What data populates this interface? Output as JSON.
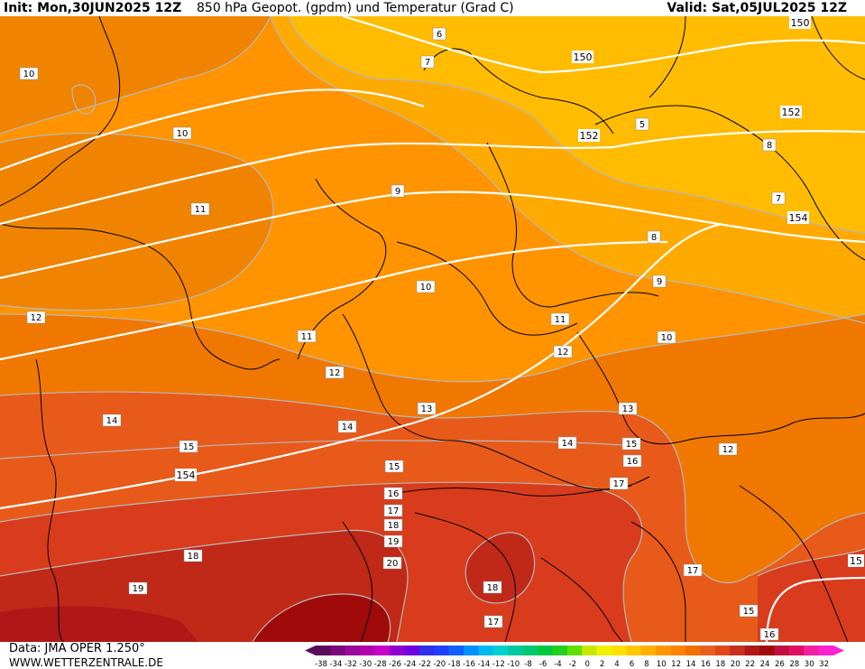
{
  "header": {
    "init": "Init: Mon,30JUN2025 12Z",
    "title": "850 hPa Geopot. (gpdm) und Temperatur (Grad C)",
    "valid": "Valid: Sat,05JUL2025 12Z"
  },
  "footer": {
    "data_source": "Data: JMA OPER 1.250°",
    "website": "WWW.WETTERZENTRALE.DE"
  },
  "legend": {
    "ticks": [
      "-38",
      "-34",
      "-32",
      "-30",
      "-28",
      "-26",
      "-24",
      "-22",
      "-20",
      "-18",
      "-16",
      "-14",
      "-12",
      "-10",
      "-8",
      "-6",
      "-4",
      "-2",
      "0",
      "2",
      "4",
      "6",
      "8",
      "10",
      "12",
      "14",
      "16",
      "18",
      "20",
      "22",
      "24",
      "26",
      "28",
      "30",
      "32"
    ],
    "colors": [
      "#5a0a5a",
      "#7a0a7a",
      "#9a0a9a",
      "#b000b0",
      "#c800c8",
      "#9000d0",
      "#7000e0",
      "#3030e8",
      "#2040ff",
      "#1060ff",
      "#0090ff",
      "#00b8f0",
      "#00d0d0",
      "#00c8a0",
      "#00c870",
      "#00c840",
      "#20d020",
      "#60e000",
      "#c8e800",
      "#f0f000",
      "#ffe000",
      "#ffc800",
      "#ffb000",
      "#ff9800",
      "#ff8400",
      "#f07000",
      "#e86020",
      "#e04818",
      "#c83020",
      "#b01818",
      "#a00a0a",
      "#c01040",
      "#e01060",
      "#f020a0",
      "#ff20d0"
    ]
  },
  "geopotential_labels": [
    "150",
    "150",
    "152",
    "152",
    "154",
    "154",
    "15"
  ],
  "isotherm_labels": [
    "6",
    "7",
    "5",
    "8",
    "7",
    "9",
    "8",
    "9",
    "10",
    "10",
    "10",
    "10",
    "11",
    "11",
    "11",
    "12",
    "12",
    "12",
    "12",
    "13",
    "13",
    "14",
    "14",
    "14",
    "15",
    "15",
    "15",
    "15",
    "16",
    "16",
    "16",
    "17",
    "17",
    "17",
    "17",
    "18",
    "18",
    "18",
    "19",
    "19",
    "20"
  ]
}
